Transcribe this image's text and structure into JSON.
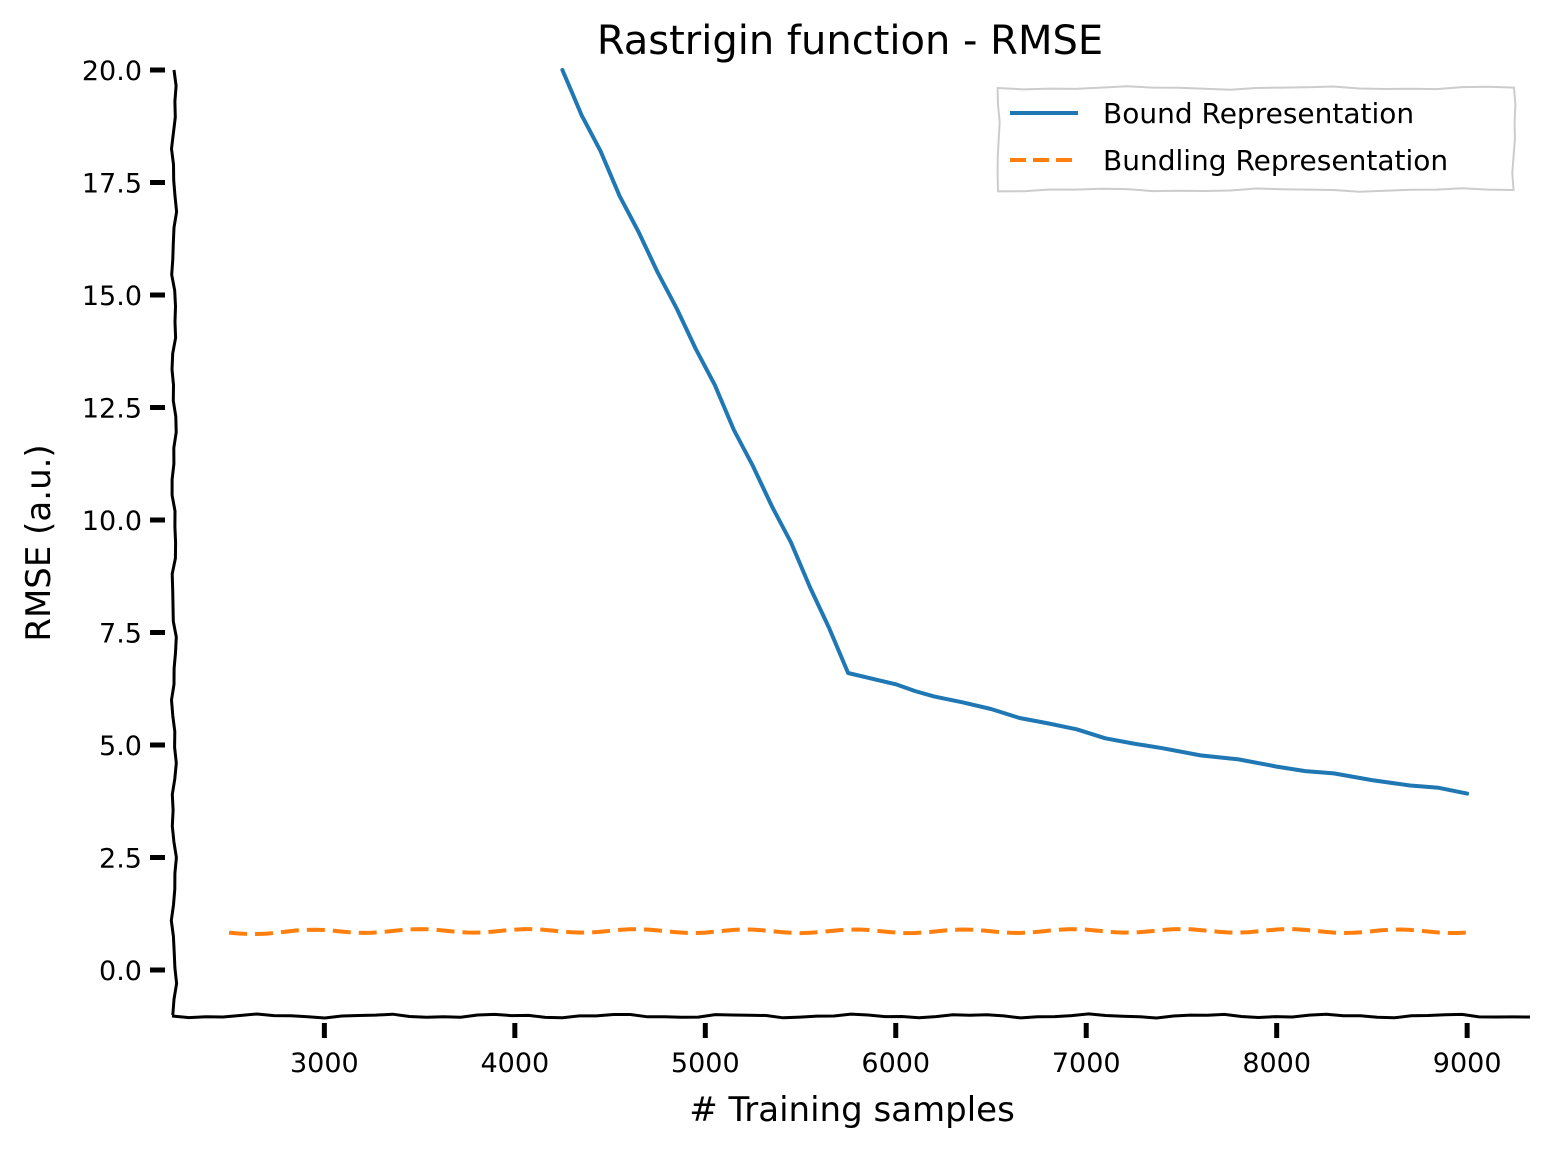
{
  "chart_data": {
    "type": "line",
    "title": "Rastrigin function - RMSE",
    "xlabel": "# Training samples",
    "ylabel": "RMSE (a.u.)",
    "xlim": [
      2200,
      9330
    ],
    "ylim": [
      -1.0,
      20.0
    ],
    "x_ticks": [
      3000,
      4000,
      5000,
      6000,
      7000,
      8000,
      9000
    ],
    "x_tick_labels": [
      "3000",
      "4000",
      "5000",
      "6000",
      "7000",
      "8000",
      "9000"
    ],
    "y_ticks": [
      0.0,
      2.5,
      5.0,
      7.5,
      10.0,
      12.5,
      15.0,
      17.5,
      20.0
    ],
    "y_tick_labels": [
      "0.0",
      "2.5",
      "5.0",
      "7.5",
      "10.0",
      "12.5",
      "15.0",
      "17.5",
      "20.0"
    ],
    "grid": false,
    "legend_position": "top-right",
    "series": [
      {
        "name": "Bound Representation",
        "color": "#1f77b4",
        "dash": "solid",
        "points": [
          [
            4250,
            20.0
          ],
          [
            4300,
            19.5
          ],
          [
            4350,
            19.0
          ],
          [
            4450,
            18.2
          ],
          [
            4550,
            17.2
          ],
          [
            4650,
            16.4
          ],
          [
            4750,
            15.5
          ],
          [
            4850,
            14.7
          ],
          [
            4950,
            13.8
          ],
          [
            5050,
            13.0
          ],
          [
            5150,
            12.0
          ],
          [
            5250,
            11.2
          ],
          [
            5350,
            10.3
          ],
          [
            5450,
            9.5
          ],
          [
            5550,
            8.5
          ],
          [
            5650,
            7.6
          ],
          [
            5700,
            7.1
          ],
          [
            5750,
            6.6
          ],
          [
            5900,
            6.45
          ],
          [
            6000,
            6.35
          ],
          [
            6100,
            6.2
          ],
          [
            6200,
            6.08
          ],
          [
            6350,
            5.95
          ],
          [
            6500,
            5.8
          ],
          [
            6650,
            5.6
          ],
          [
            6800,
            5.48
          ],
          [
            6950,
            5.35
          ],
          [
            7100,
            5.15
          ],
          [
            7250,
            5.03
          ],
          [
            7400,
            4.93
          ],
          [
            7600,
            4.77
          ],
          [
            7800,
            4.68
          ],
          [
            8000,
            4.52
          ],
          [
            8150,
            4.42
          ],
          [
            8300,
            4.37
          ],
          [
            8500,
            4.22
          ],
          [
            8700,
            4.1
          ],
          [
            8850,
            4.05
          ],
          [
            9000,
            3.92
          ]
        ]
      },
      {
        "name": "Bundling Representation",
        "color": "#ff7f0e",
        "dash": "dashed",
        "points": [
          [
            2500,
            0.83
          ],
          [
            3000,
            0.86
          ],
          [
            3500,
            0.87
          ],
          [
            4000,
            0.87
          ],
          [
            4500,
            0.87
          ],
          [
            5000,
            0.86
          ],
          [
            5500,
            0.86
          ],
          [
            6000,
            0.86
          ],
          [
            6500,
            0.86
          ],
          [
            7000,
            0.87
          ],
          [
            7500,
            0.87
          ],
          [
            8000,
            0.87
          ],
          [
            8500,
            0.86
          ],
          [
            9000,
            0.86
          ]
        ]
      }
    ]
  }
}
